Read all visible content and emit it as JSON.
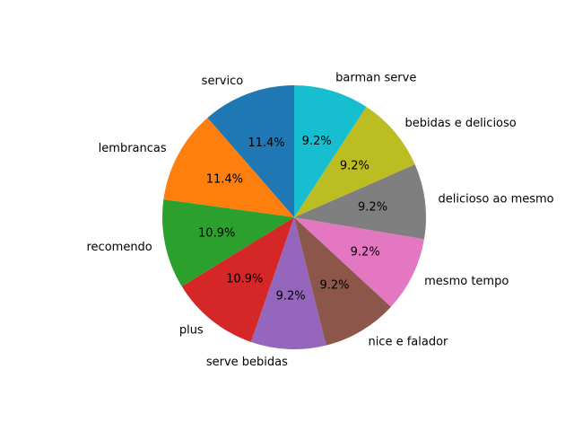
{
  "chart_data": {
    "type": "pie",
    "start_angle_deg": 90,
    "direction": "counterclockwise",
    "slices": [
      {
        "label": "servico",
        "pct_label": "11.4%",
        "value": 11.4,
        "color": "#1f77b4"
      },
      {
        "label": "lembrancas",
        "pct_label": "11.4%",
        "value": 11.4,
        "color": "#ff7f0e"
      },
      {
        "label": "recomendo",
        "pct_label": "10.9%",
        "value": 10.9,
        "color": "#2ca02c"
      },
      {
        "label": "plus",
        "pct_label": "10.9%",
        "value": 10.9,
        "color": "#d62728"
      },
      {
        "label": "serve bebidas",
        "pct_label": "9.2%",
        "value": 9.2,
        "color": "#9467bd"
      },
      {
        "label": "nice e falador",
        "pct_label": "9.2%",
        "value": 9.2,
        "color": "#8c564b"
      },
      {
        "label": "mesmo tempo",
        "pct_label": "9.2%",
        "value": 9.2,
        "color": "#e377c2"
      },
      {
        "label": "delicioso ao mesmo",
        "pct_label": "9.2%",
        "value": 9.2,
        "color": "#7f7f7f"
      },
      {
        "label": "bebidas e delicioso",
        "pct_label": "9.2%",
        "value": 9.2,
        "color": "#bcbd22"
      },
      {
        "label": "barman serve",
        "pct_label": "9.2%",
        "value": 9.2,
        "color": "#17becf"
      }
    ]
  }
}
